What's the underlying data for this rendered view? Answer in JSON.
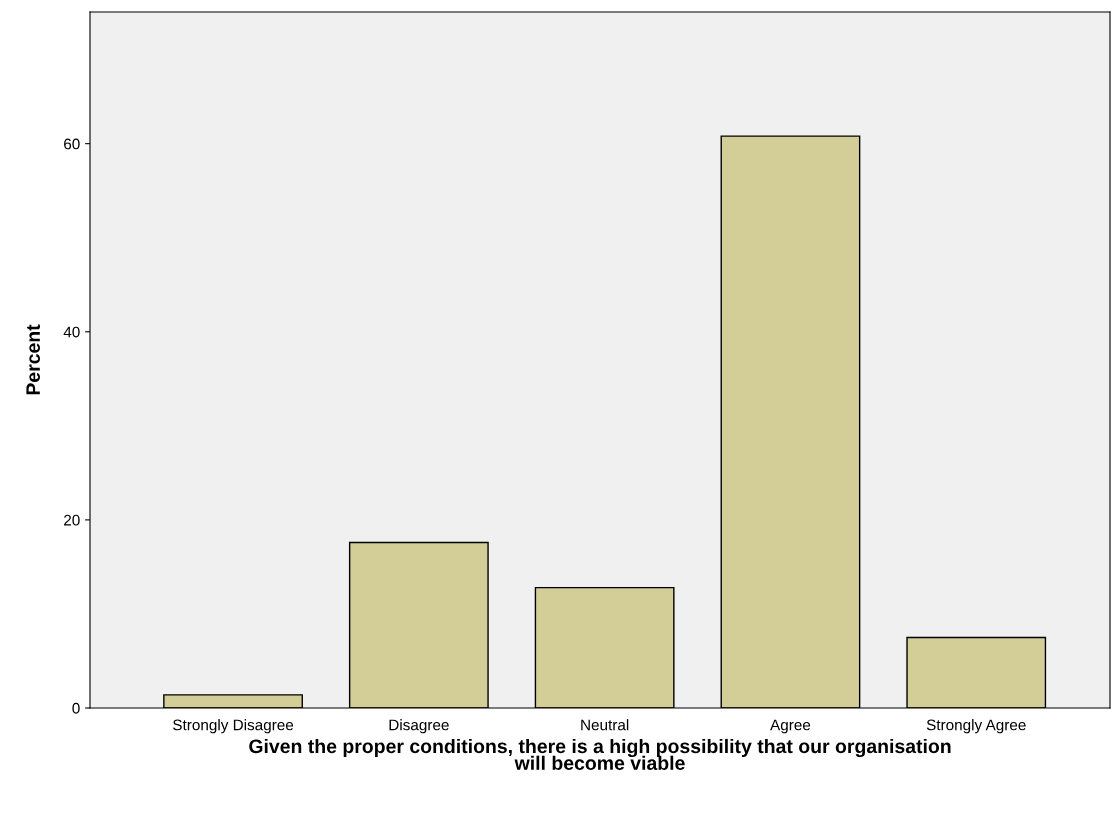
{
  "chart_data": {
    "type": "bar",
    "xlabel": "Given the proper conditions, there is a high possibility that our organisation\nwill become viable",
    "ylabel": "Percent",
    "categories": [
      "Strongly Disagree",
      "Disagree",
      "Neutral",
      "Agree",
      "Strongly Agree"
    ],
    "values": [
      1.4,
      17.6,
      12.8,
      60.8,
      7.5
    ],
    "color": "#d3ce97",
    "ylim": [
      0,
      74
    ],
    "yticks": [
      0,
      20,
      40,
      60
    ],
    "grid": false
  }
}
